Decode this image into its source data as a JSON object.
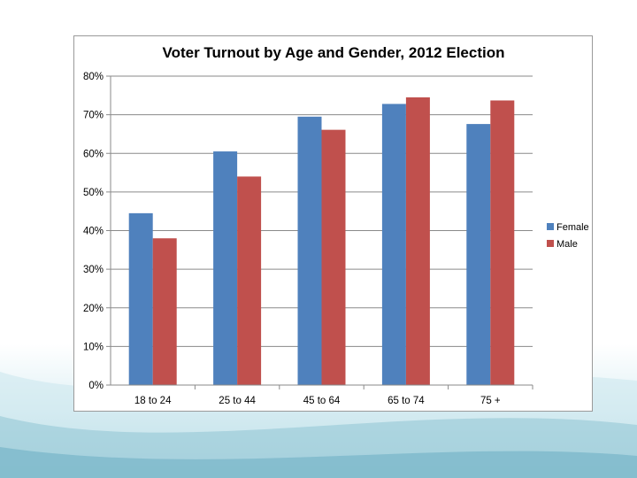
{
  "slide": {
    "background_colors": [
      "#ffffff",
      "#dff0f5",
      "#a9d3df",
      "#6fb0c4"
    ]
  },
  "chart_data": {
    "type": "bar",
    "title": "Voter Turnout by Age and Gender, 2012 Election",
    "xlabel": "",
    "ylabel": "",
    "categories": [
      "18 to 24",
      "25 to 44",
      "45 to 64",
      "65 to 74",
      "75 +"
    ],
    "series": [
      {
        "name": "Female",
        "color": "#4f81bd",
        "values": [
          44.5,
          60.5,
          69.5,
          72.8,
          67.6
        ]
      },
      {
        "name": "Male",
        "color": "#c0504d",
        "values": [
          38,
          54,
          66.1,
          74.5,
          73.7
        ]
      }
    ],
    "ylim": [
      0,
      80
    ],
    "yticks": [
      0,
      10,
      20,
      30,
      40,
      50,
      60,
      70,
      80
    ],
    "ytick_labels": [
      "0%",
      "10%",
      "20%",
      "30%",
      "40%",
      "50%",
      "60%",
      "70%",
      "80%"
    ],
    "grid": true,
    "legend_position": "right"
  }
}
